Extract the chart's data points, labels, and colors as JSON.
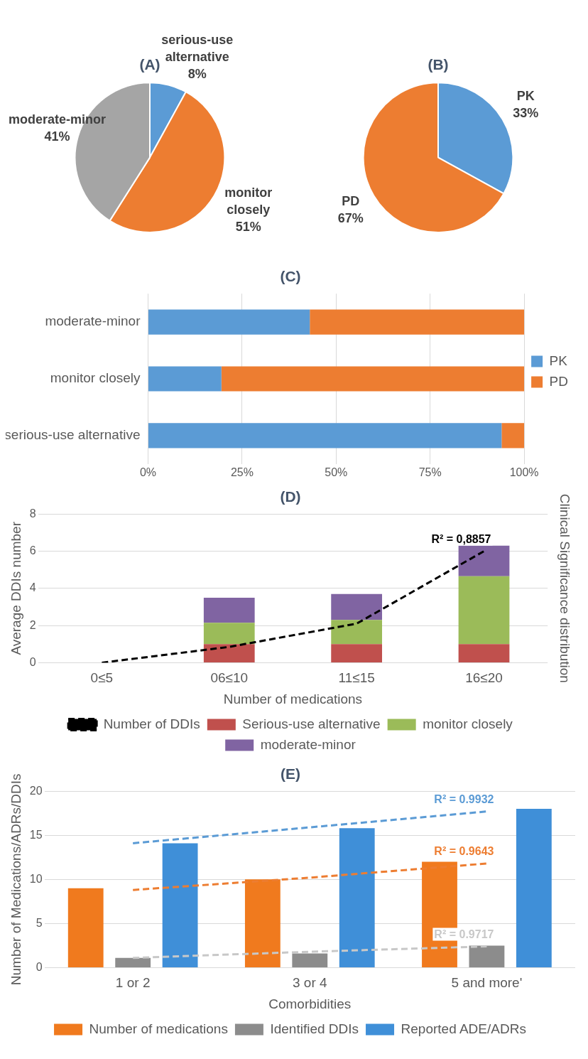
{
  "chart_data": [
    {
      "type": "pie",
      "title": "(A)",
      "categories": [
        "serious-use alternative",
        "monitor closely",
        "moderate-minor"
      ],
      "values": [
        8,
        51,
        41
      ],
      "colors": [
        "#5b9bd5",
        "#ed7d31",
        "#a5a5a5"
      ],
      "value_labels": [
        "8%",
        "51%",
        "41%"
      ]
    },
    {
      "type": "pie",
      "title": "(B)",
      "categories": [
        "PK",
        "PD"
      ],
      "values": [
        33,
        67
      ],
      "colors": [
        "#5b9bd5",
        "#ed7d31"
      ],
      "value_labels": [
        "33%",
        "67%"
      ]
    },
    {
      "type": "bar",
      "title": "(C)",
      "orientation": "horizontal",
      "stacked": true,
      "categories": [
        "moderate-minor",
        "monitor closely",
        "serious-use alternative"
      ],
      "series": [
        {
          "name": "PK",
          "color": "#5b9bd5",
          "values": [
            43,
            19.5,
            94
          ]
        },
        {
          "name": "PD",
          "color": "#ed7d31",
          "values": [
            57,
            80.5,
            6
          ]
        }
      ],
      "xlim": [
        0,
        100
      ],
      "xticks": [
        {
          "value": 0,
          "label": "0%"
        },
        {
          "value": 25,
          "label": "25%"
        },
        {
          "value": 50,
          "label": "50%"
        },
        {
          "value": 75,
          "label": "75%"
        },
        {
          "value": 100,
          "label": "100%"
        }
      ],
      "grid": "x",
      "legend": "right"
    },
    {
      "type": "bar",
      "title": "(D)",
      "stacked": true,
      "categories": [
        "0≤5",
        "06≤10",
        "11≤15",
        "16≤20"
      ],
      "xlabel": "Number of medications",
      "ylabel": "Average DDIs number",
      "y2label": "Clinical Significance distribution",
      "series": [
        {
          "name": "Serious-use alternative",
          "color": "#c0504d",
          "values": [
            0,
            1,
            1,
            1
          ]
        },
        {
          "name": "monitor closely",
          "color": "#9bbb59",
          "values": [
            0,
            1.15,
            1.3,
            3.65
          ]
        },
        {
          "name": "moderate-minor",
          "color": "#8064a2",
          "values": [
            0,
            1.35,
            1.4,
            1.65
          ]
        },
        {
          "name": "Number of DDIs",
          "type": "line",
          "color": "#000000",
          "line_style": "dashed",
          "marker": "none",
          "values": [
            0,
            0.85,
            2.1,
            6
          ]
        }
      ],
      "ylim": [
        0,
        8
      ],
      "yticks": [
        0,
        2,
        4,
        6,
        8
      ],
      "grid": "y",
      "legend": "bottom",
      "annotations": [
        "R² = 0,8857"
      ]
    },
    {
      "type": "bar",
      "title": "(E)",
      "categories": [
        "1 or 2",
        "3 or 4",
        "5 and more'"
      ],
      "xlabel": "Comorbidities",
      "ylabel": "Number of Medications/ADRs/DDIs",
      "series": [
        {
          "name": "Number of medications",
          "color": "#f07a1e",
          "values": [
            9,
            10,
            12
          ]
        },
        {
          "name": "Identified DDIs",
          "color": "#8c8c8c",
          "values": [
            1.1,
            1.6,
            2.5
          ]
        },
        {
          "name": "Reported ADE/ADRs",
          "color": "#3f8fd8",
          "values": [
            14.1,
            15.8,
            18
          ]
        },
        {
          "type": "line",
          "color": "#5b9bd5",
          "line_style": "dashed",
          "marker": "none",
          "x": [
            "1 or 2",
            "3 or 4",
            "5 and more'"
          ],
          "values": [
            14.1,
            15.9,
            17.7
          ]
        },
        {
          "type": "line",
          "color": "#ed7d31",
          "line_style": "dashed",
          "marker": "none",
          "x": [
            "1 or 2",
            "3 or 4",
            "5 and more'"
          ],
          "values": [
            8.8,
            10.2,
            11.8
          ]
        },
        {
          "type": "line",
          "color": "#c8c8c8",
          "line_style": "dashed",
          "marker": "none",
          "x": [
            "1 or 2",
            "3 or 4",
            "5 and more'"
          ],
          "values": [
            1.1,
            1.8,
            2.4
          ]
        }
      ],
      "ylim": [
        0,
        20
      ],
      "yticks": [
        0,
        5,
        10,
        15,
        20
      ],
      "grid": "y",
      "legend": "bottom",
      "annotations": [
        "R² = 0.9932",
        "R² = 0.9643",
        "R² = 0.9717"
      ]
    }
  ]
}
